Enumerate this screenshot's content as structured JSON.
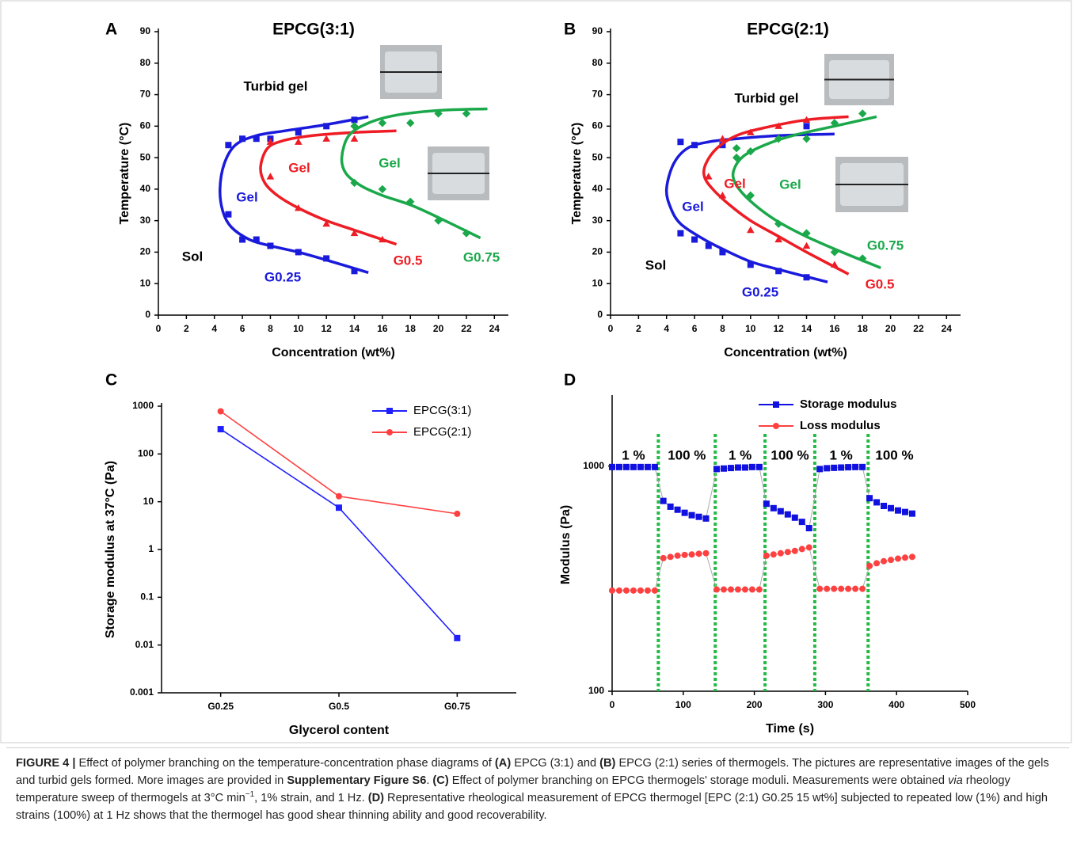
{
  "chart_data": [
    {
      "type": "phase",
      "panel_label": "A",
      "title": "EPCG(3:1)",
      "x_label": "Concentration (wt%)",
      "y_label": "Temperature (°C)",
      "xlim": [
        0,
        25
      ],
      "ylim": [
        0,
        90
      ],
      "xticks": [
        0,
        2,
        4,
        6,
        8,
        10,
        12,
        14,
        16,
        18,
        20,
        22,
        24
      ],
      "yticks": [
        0,
        10,
        20,
        30,
        40,
        50,
        60,
        70,
        80,
        90
      ],
      "annotations": [
        "Turbid gel",
        "Gel",
        "Gel",
        "Gel",
        "Sol"
      ],
      "series": [
        {
          "name": "G0.25",
          "color": "#1a1adc",
          "marker": "square",
          "x": [
            5,
            6,
            7,
            8,
            10,
            12,
            14,
            5,
            6,
            7,
            8,
            10,
            12,
            14
          ],
          "values": [
            54,
            56,
            56,
            56,
            58,
            60,
            62,
            32,
            24,
            24,
            22,
            20,
            18,
            14
          ],
          "fit_x": [
            15,
            12,
            9,
            7,
            5.5,
            4.7,
            4.4,
            4.6,
            5.2,
            6.5,
            8,
            10,
            12,
            15
          ],
          "fit_y": [
            63,
            60.5,
            58.5,
            57,
            54,
            48,
            40,
            33,
            28,
            24,
            22,
            20,
            17.5,
            13.5
          ]
        },
        {
          "name": "G0.5",
          "color": "#ee1c24",
          "marker": "triangle",
          "x": [
            8,
            10,
            12,
            14,
            8,
            10,
            12,
            14,
            16
          ],
          "values": [
            55,
            55,
            56,
            56,
            44,
            34,
            29,
            26,
            24
          ],
          "fit_x": [
            17,
            14,
            11,
            9,
            7.8,
            7.3,
            7.6,
            8.5,
            10,
            12,
            14,
            17
          ],
          "fit_y": [
            58.5,
            58,
            57,
            55.5,
            53,
            47,
            42,
            38,
            34,
            30,
            27,
            22.5
          ]
        },
        {
          "name": "G0.75",
          "color": "#1aa84a",
          "marker": "diamond",
          "x": [
            14,
            16,
            18,
            20,
            22,
            14,
            16,
            18,
            20,
            22
          ],
          "values": [
            60,
            61,
            61,
            64,
            64,
            42,
            40,
            36,
            30,
            26
          ],
          "fit_x": [
            23.5,
            20,
            17,
            15,
            13.6,
            13.1,
            13.4,
            14.5,
            16,
            18,
            20,
            23
          ],
          "fit_y": [
            65.5,
            65,
            63.5,
            61,
            57,
            50,
            45,
            41,
            38,
            35,
            31,
            24.5
          ]
        }
      ]
    },
    {
      "type": "phase",
      "panel_label": "B",
      "title": "EPCG(2:1)",
      "x_label": "Concentration (wt%)",
      "y_label": "Temperature (°C)",
      "xlim": [
        0,
        25
      ],
      "ylim": [
        0,
        90
      ],
      "xticks": [
        0,
        2,
        4,
        6,
        8,
        10,
        12,
        14,
        16,
        18,
        20,
        22,
        24
      ],
      "yticks": [
        0,
        10,
        20,
        30,
        40,
        50,
        60,
        70,
        80,
        90
      ],
      "annotations": [
        "Turbid gel",
        "Gel",
        "Gel",
        "Gel",
        "Sol"
      ],
      "series": [
        {
          "name": "G0.25",
          "color": "#1a1adc",
          "marker": "square",
          "x": [
            5,
            6,
            8,
            14,
            5,
            6,
            7,
            8,
            10,
            12,
            14
          ],
          "values": [
            55,
            54,
            54,
            60,
            26,
            24,
            22,
            20,
            16,
            14,
            12
          ],
          "fit_x": [
            16,
            12,
            9,
            7,
            5.5,
            4.5,
            4,
            4.3,
            5,
            6.5,
            8,
            10,
            12,
            15.5
          ],
          "fit_y": [
            57.5,
            57,
            56,
            55,
            53,
            48,
            40,
            34,
            29,
            24.5,
            21,
            17,
            14.5,
            10.5
          ]
        },
        {
          "name": "G0.5",
          "color": "#ee1c24",
          "marker": "triangle",
          "x": [
            8,
            10,
            12,
            14,
            7,
            8,
            10,
            12,
            14,
            16
          ],
          "values": [
            56,
            58,
            60,
            62,
            44,
            38,
            27,
            24,
            22,
            16
          ],
          "fit_x": [
            17,
            14,
            11,
            9,
            7.6,
            6.8,
            6.7,
            7.3,
            8.5,
            10,
            12,
            14,
            17
          ],
          "fit_y": [
            63,
            62,
            59.5,
            57,
            53,
            48,
            44,
            40,
            35,
            30,
            25,
            20,
            13
          ]
        },
        {
          "name": "G0.75",
          "color": "#1aa84a",
          "marker": "diamond",
          "x": [
            9,
            9,
            10,
            12,
            14,
            16,
            18,
            10,
            12,
            14,
            16,
            18
          ],
          "values": [
            53,
            50,
            52,
            56,
            56,
            61,
            64,
            38,
            29,
            26,
            20,
            18
          ],
          "fit_x": [
            19,
            16,
            13,
            11,
            9.5,
            8.8,
            8.9,
            9.8,
            11.5,
            13.5,
            16,
            19.3
          ],
          "fit_y": [
            63,
            60,
            57,
            54,
            50.5,
            46,
            42,
            37,
            31,
            26,
            21,
            15
          ]
        }
      ]
    },
    {
      "type": "line",
      "panel_label": "C",
      "x_label": "Glycerol content",
      "y_label": "Storage modulus at 37°C (Pa)",
      "log_y": true,
      "categories": [
        "G0.25",
        "G0.5",
        "G0.75"
      ],
      "ylim": [
        0.001,
        1000
      ],
      "yticks": [
        0.001,
        0.01,
        0.1,
        1,
        10,
        100,
        1000
      ],
      "series": [
        {
          "name": "EPCG(3:1)",
          "color": "#2020ff",
          "marker": "square",
          "values": [
            330,
            7.5,
            0.014
          ]
        },
        {
          "name": "EPCG(2:1)",
          "color": "#ff4040",
          "marker": "circle",
          "values": [
            780,
            13,
            5.6
          ]
        }
      ]
    },
    {
      "type": "line",
      "panel_label": "D",
      "x_label": "Time (s)",
      "y_label": "Modulus (Pa)",
      "log_y": true,
      "xlim": [
        0,
        500
      ],
      "ylim": [
        100,
        2000
      ],
      "xticks": [
        0,
        100,
        200,
        300,
        400,
        500
      ],
      "yticks": [
        100,
        1000
      ],
      "x": [
        0,
        10,
        20,
        30,
        40,
        50,
        60,
        72,
        82,
        92,
        102,
        112,
        122,
        132,
        147,
        157,
        167,
        177,
        187,
        197,
        207,
        217,
        227,
        237,
        247,
        257,
        267,
        277,
        292,
        302,
        312,
        322,
        332,
        342,
        352,
        362,
        372,
        382,
        392,
        402,
        412,
        422
      ],
      "switch_times": [
        65,
        145,
        215,
        285,
        360
      ],
      "switch_color": "#22bb44",
      "strain_labels": [
        {
          "text": "1 %",
          "x": 30
        },
        {
          "text": "100 %",
          "x": 105
        },
        {
          "text": "1 %",
          "x": 180
        },
        {
          "text": "100 %",
          "x": 250
        },
        {
          "text": "1 %",
          "x": 322
        },
        {
          "text": "100 %",
          "x": 397
        }
      ],
      "series": [
        {
          "name": "Storage modulus",
          "color": "#1010e0",
          "line_color": "#aaaaaa",
          "marker": "square",
          "values": [
            990,
            990,
            990,
            990,
            990,
            990,
            990,
            700,
            660,
            640,
            620,
            605,
            595,
            585,
            970,
            975,
            980,
            985,
            985,
            990,
            990,
            680,
            650,
            630,
            610,
            590,
            565,
            530,
            970,
            978,
            982,
            985,
            988,
            990,
            990,
            720,
            690,
            665,
            650,
            635,
            625,
            615
          ]
        },
        {
          "name": "Loss modulus",
          "color": "#ff4040",
          "line_color": "#aaaaaa",
          "marker": "circle",
          "values": [
            280,
            280,
            280,
            280,
            280,
            280,
            280,
            390,
            395,
            400,
            403,
            405,
            408,
            410,
            283,
            283,
            283,
            283,
            283,
            283,
            283,
            400,
            405,
            410,
            415,
            420,
            428,
            435,
            285,
            285,
            285,
            285,
            285,
            285,
            285,
            360,
            370,
            378,
            383,
            388,
            392,
            395
          ]
        }
      ]
    }
  ],
  "caption": {
    "runs": [
      {
        "text": "FIGURE 4 |",
        "style": "bold"
      },
      {
        "text": " Effect of polymer branching on the temperature-concentration phase diagrams of ",
        "style": "normal"
      },
      {
        "text": "(A)",
        "style": "bold"
      },
      {
        "text": " EPCG (3:1) and ",
        "style": "normal"
      },
      {
        "text": "(B)",
        "style": "bold"
      },
      {
        "text": " EPCG (2:1) series of thermogels. The pictures are representative images of the gels and turbid gels formed. More images are provided in ",
        "style": "normal"
      },
      {
        "text": "Supplementary Figure S6",
        "style": "bold"
      },
      {
        "text": ". ",
        "style": "normal"
      },
      {
        "text": "(C)",
        "style": "bold"
      },
      {
        "text": " Effect of polymer branching on EPCG thermogels' storage moduli. Measurements were obtained ",
        "style": "normal"
      },
      {
        "text": "via",
        "style": "italic"
      },
      {
        "text": " rheology temperature sweep of thermogels at 3°C min",
        "style": "normal"
      },
      {
        "text": "−1",
        "style": "sup"
      },
      {
        "text": ", 1% strain, and 1 Hz. ",
        "style": "normal"
      },
      {
        "text": "(D)",
        "style": "bold"
      },
      {
        "text": " Representative rheological measurement of EPCG thermogel [EPC (2:1) G0.25 15 wt%] subjected to repeated low (1%) and high strains (100%) at 1 Hz shows that the thermogel has good shear thinning ability and good recoverability.",
        "style": "normal"
      }
    ]
  }
}
